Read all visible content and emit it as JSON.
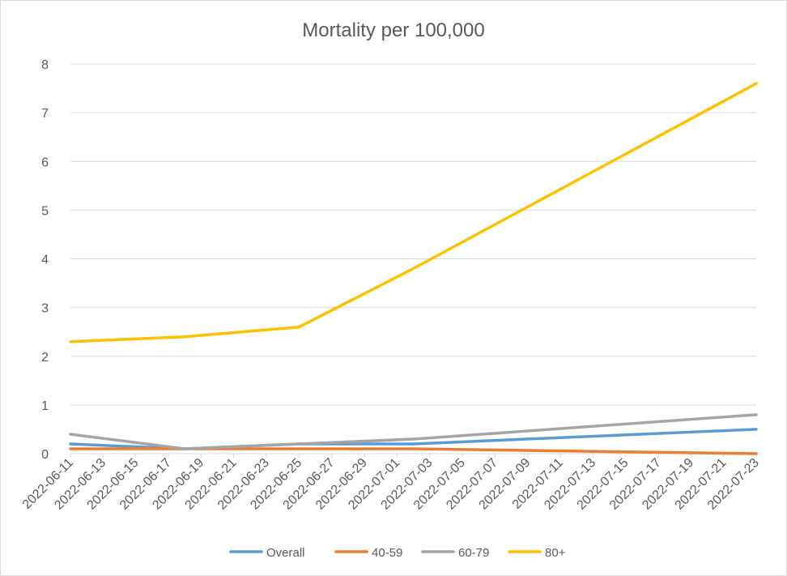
{
  "chart_data": {
    "type": "line",
    "title": "Mortality per 100,000",
    "xlabel": "",
    "ylabel": "",
    "x": [
      "2022-06-11",
      "2022-06-18",
      "2022-06-25",
      "2022-07-02",
      "2022-07-23"
    ],
    "x_range": [
      "2022-06-11",
      "2022-07-23"
    ],
    "x_ticks": [
      "2022-06-11",
      "2022-06-13",
      "2022-06-15",
      "2022-06-17",
      "2022-06-19",
      "2022-06-21",
      "2022-06-23",
      "2022-06-25",
      "2022-06-27",
      "2022-06-29",
      "2022-07-01",
      "2022-07-03",
      "2022-07-05",
      "2022-07-07",
      "2022-07-09",
      "2022-07-11",
      "2022-07-13",
      "2022-07-15",
      "2022-07-17",
      "2022-07-19",
      "2022-07-21",
      "2022-07-23"
    ],
    "y_ticks": [
      "0",
      "1",
      "2",
      "3",
      "4",
      "5",
      "6",
      "7",
      "8"
    ],
    "ylim": [
      0,
      8
    ],
    "grid": true,
    "legend_position": "bottom",
    "series": [
      {
        "name": "Overall",
        "color": "#5b9bd5",
        "values": [
          0.2,
          0.1,
          0.2,
          0.2,
          0.5
        ]
      },
      {
        "name": "40-59",
        "color": "#ed7d31",
        "values": [
          0.1,
          0.1,
          0.1,
          0.1,
          0.0
        ]
      },
      {
        "name": "60-79",
        "color": "#a5a5a5",
        "values": [
          0.4,
          0.1,
          0.2,
          0.3,
          0.8
        ]
      },
      {
        "name": "80+",
        "color": "#ffc000",
        "values": [
          2.3,
          2.4,
          2.6,
          3.8,
          7.6
        ]
      }
    ]
  }
}
